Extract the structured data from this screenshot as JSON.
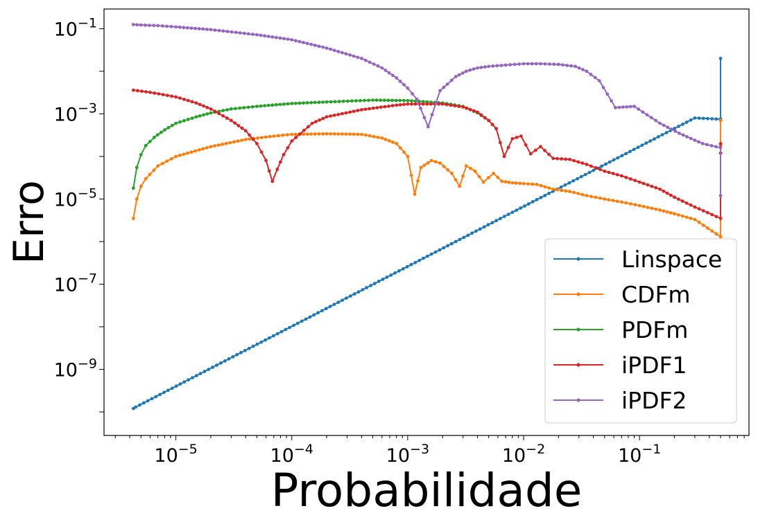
{
  "chart_data": {
    "type": "line",
    "title": "",
    "xlabel": "Probabilidade",
    "ylabel": "Erro",
    "xscale": "log",
    "yscale": "log",
    "xlim": [
      2.4e-06,
      0.88
    ],
    "ylim": [
      2.8e-11,
      0.29
    ],
    "grid": false,
    "legend_position": "lower-right",
    "x_tick_labels": [
      {
        "base": "10",
        "exp": "−5",
        "value": 1e-05
      },
      {
        "base": "10",
        "exp": "−4",
        "value": 0.0001
      },
      {
        "base": "10",
        "exp": "−3",
        "value": 0.001
      },
      {
        "base": "10",
        "exp": "−2",
        "value": 0.01
      },
      {
        "base": "10",
        "exp": "−1",
        "value": 0.1
      }
    ],
    "y_tick_labels": [
      {
        "base": "10",
        "exp": "−1",
        "value": 0.1
      },
      {
        "base": "10",
        "exp": "−3",
        "value": 0.001
      },
      {
        "base": "10",
        "exp": "−5",
        "value": 1e-05
      },
      {
        "base": "10",
        "exp": "−7",
        "value": 1e-07
      },
      {
        "base": "10",
        "exp": "−9",
        "value": 1e-09
      }
    ],
    "series": [
      {
        "name": "Linspace",
        "color": "#1f77b4",
        "x": [
          4.3e-06,
          4.5e-06,
          0.3,
          0.5,
          0.5
        ],
        "y": [
          1.2e-10,
          1.3e-10,
          0.0008,
          0.00075,
          0.02
        ]
      },
      {
        "name": "CDFm",
        "color": "#ff7f0e",
        "x": [
          4.3e-06,
          4.6e-06,
          5e-06,
          5.5e-06,
          7e-06,
          1e-05,
          2e-05,
          4e-05,
          7e-05,
          0.0001,
          0.0002,
          0.0004,
          0.0006,
          0.0008,
          0.001,
          0.00115,
          0.0013,
          0.0016,
          0.0019,
          0.0024,
          0.0028,
          0.0032,
          0.0038,
          0.0045,
          0.0055,
          0.0065,
          0.008,
          0.01,
          0.013,
          0.018,
          0.025,
          0.035,
          0.05,
          0.07,
          0.1,
          0.15,
          0.2,
          0.3,
          0.5,
          0.5,
          0.5
        ],
        "y": [
          3.5e-06,
          1e-05,
          2e-05,
          3e-05,
          6e-05,
          0.0001,
          0.00017,
          0.00025,
          0.0003,
          0.00033,
          0.00034,
          0.00033,
          0.00027,
          0.0002,
          0.0001,
          1.3e-05,
          5.5e-05,
          8e-05,
          7e-05,
          4e-05,
          2e-05,
          6e-05,
          4.5e-05,
          2.5e-05,
          4e-05,
          2.6e-05,
          2.4e-05,
          2.3e-05,
          2.2e-05,
          1.7e-05,
          1.5e-05,
          1.2e-05,
          1e-05,
          8.5e-06,
          7e-06,
          5.5e-06,
          4.5e-06,
          3.3e-06,
          1.3e-06,
          0.00018,
          0.0007
        ]
      },
      {
        "name": "PDFm",
        "color": "#2ca02c",
        "x": [
          4.3e-06,
          4.6e-06,
          5e-06,
          5.5e-06,
          6.5e-06,
          8e-06,
          1e-05,
          1.5e-05,
          2e-05,
          3e-05,
          5e-05,
          0.0001,
          0.0002,
          0.0005,
          0.001,
          0.002,
          0.003,
          0.004,
          0.005,
          0.0058
        ],
        "y": [
          1.8e-05,
          5.5e-05,
          0.00011,
          0.00018,
          0.00028,
          0.00042,
          0.0006,
          0.00085,
          0.00105,
          0.0013,
          0.0015,
          0.00175,
          0.0019,
          0.0021,
          0.00205,
          0.0018,
          0.0015,
          0.00105,
          0.0007,
          0.00045
        ]
      },
      {
        "name": "iPDF1",
        "color": "#d62728",
        "x": [
          4.3e-06,
          6e-06,
          1e-05,
          1.5e-05,
          2e-05,
          3e-05,
          4e-05,
          5e-05,
          6e-05,
          6.8e-05,
          7.5e-05,
          8.5e-05,
          0.0001,
          0.00015,
          0.0002,
          0.0004,
          0.0008,
          0.001,
          0.002,
          0.003,
          0.004,
          0.005,
          0.0058,
          0.0068,
          0.008,
          0.0095,
          0.0115,
          0.014,
          0.018,
          0.025,
          0.035,
          0.05,
          0.07,
          0.1,
          0.15,
          0.2,
          0.3,
          0.5,
          0.5,
          0.5
        ],
        "y": [
          0.0036,
          0.0032,
          0.0025,
          0.0018,
          0.0013,
          0.0007,
          0.0004,
          0.0002,
          8e-05,
          2.6e-05,
          5e-05,
          0.00011,
          0.00023,
          0.0006,
          0.00085,
          0.00125,
          0.0016,
          0.0017,
          0.0017,
          0.00145,
          0.0011,
          0.0007,
          0.00045,
          0.0001,
          0.00026,
          0.0003,
          0.000115,
          0.00017,
          9e-05,
          8.5e-05,
          6.5e-05,
          4.5e-05,
          3.5e-05,
          2.5e-05,
          1.7e-05,
          1.1e-05,
          6.5e-06,
          3.5e-06,
          0.0002,
          0.00012
        ]
      },
      {
        "name": "iPDF2",
        "color": "#9467bd",
        "x": [
          4.3e-06,
          5e-06,
          7e-06,
          1e-05,
          2e-05,
          5e-05,
          0.0001,
          0.0002,
          0.0004,
          0.0006,
          0.0008,
          0.001,
          0.0012,
          0.0015,
          0.0019,
          0.0022,
          0.0026,
          0.0032,
          0.004,
          0.005,
          0.007,
          0.01,
          0.014,
          0.02,
          0.028,
          0.035,
          0.045,
          0.062,
          0.09,
          0.15,
          0.22,
          0.35,
          0.5,
          0.5
        ],
        "y": [
          0.125,
          0.122,
          0.118,
          0.11,
          0.095,
          0.072,
          0.055,
          0.035,
          0.02,
          0.012,
          0.007,
          0.004,
          0.0022,
          0.0005,
          0.0035,
          0.005,
          0.0075,
          0.01,
          0.012,
          0.013,
          0.014,
          0.015,
          0.015,
          0.0145,
          0.013,
          0.01,
          0.006,
          0.0014,
          0.0015,
          0.0006,
          0.00035,
          0.0002,
          0.00016,
          1.2e-05
        ]
      }
    ]
  }
}
